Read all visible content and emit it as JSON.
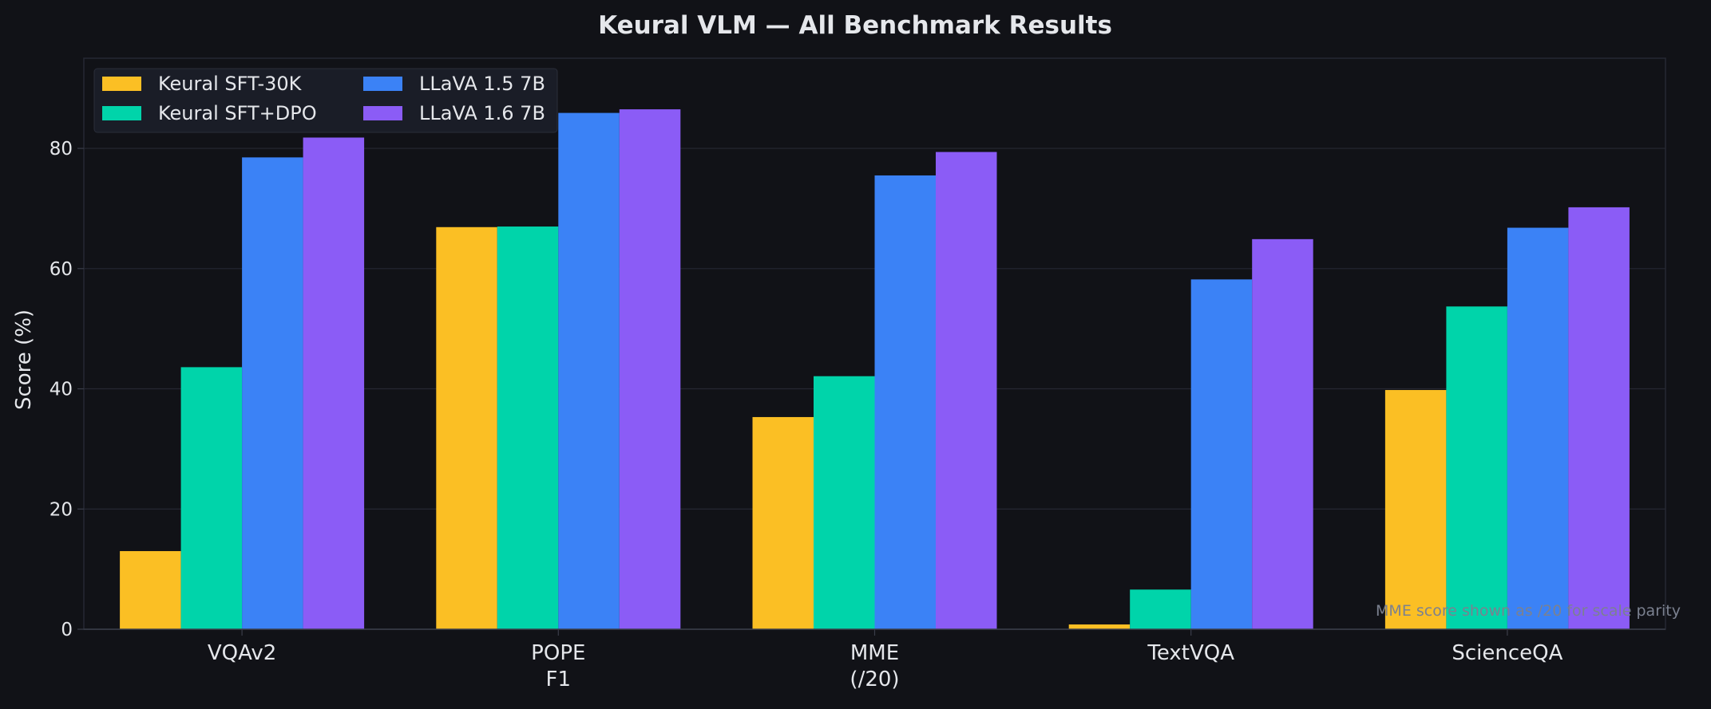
{
  "chart_data": {
    "type": "bar",
    "title": "Keural VLM — All Benchmark Results",
    "xlabel": "",
    "ylabel": "Score (%)",
    "ylim": [
      0,
      95
    ],
    "yticks": [
      0,
      20,
      40,
      60,
      80
    ],
    "grid": true,
    "legend_position": "top-left",
    "categories": [
      [
        "VQAv2"
      ],
      [
        "POPE",
        "F1"
      ],
      [
        "MME",
        "(/20)"
      ],
      [
        "TextVQA"
      ],
      [
        "ScienceQA"
      ]
    ],
    "series": [
      {
        "name": "Keural SFT-30K",
        "color": "#fbbf24",
        "values": [
          13.0,
          66.9,
          35.3,
          0.8,
          39.8
        ]
      },
      {
        "name": "Keural SFT+DPO",
        "color": "#00d4aa",
        "values": [
          43.6,
          67.0,
          42.1,
          6.6,
          53.7
        ]
      },
      {
        "name": "LLaVA 1.5 7B",
        "color": "#3b82f6",
        "values": [
          78.5,
          85.9,
          75.5,
          58.2,
          66.8
        ]
      },
      {
        "name": "LLaVA 1.6 7B",
        "color": "#8b5cf6",
        "values": [
          81.8,
          86.5,
          79.4,
          64.9,
          70.2
        ]
      }
    ],
    "annotation": "MME score shown as /20 for scale parity"
  },
  "colors": {
    "background": "#111217",
    "grid": "#262833",
    "axis": "#3a3d49",
    "text": "#e5e7eb",
    "muted_text": "#7b8190",
    "legend_background": "#1a1d27"
  }
}
